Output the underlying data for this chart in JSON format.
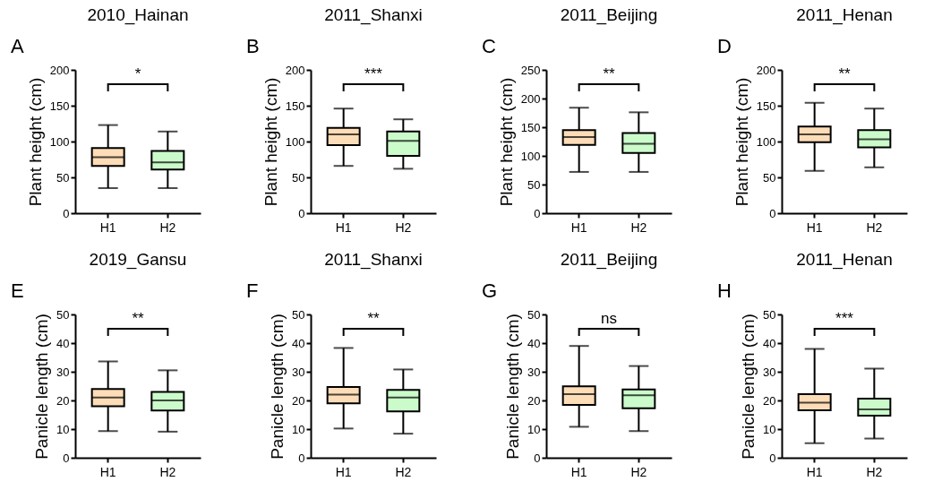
{
  "chart_data": [
    {
      "type": "box",
      "title": "2010_Hainan",
      "ylabel": "Plant height (cm)",
      "categories": [
        "H1",
        "H2"
      ],
      "colors": [
        "#fddcb8",
        "#cbfbcb"
      ],
      "ylim": [
        0,
        200
      ],
      "yticks": [
        0,
        50,
        100,
        150,
        200
      ],
      "annotations": [
        "A",
        "*"
      ],
      "boxes": [
        {
          "low": 35,
          "q1": 66,
          "median": 78,
          "q3": 91,
          "high": 123
        },
        {
          "low": 35,
          "q1": 61,
          "median": 71,
          "q3": 87,
          "high": 114
        }
      ]
    },
    {
      "type": "box",
      "title": "2011_Shanxi",
      "ylabel": "Plant height (cm)",
      "categories": [
        "H1",
        "H2"
      ],
      "colors": [
        "#fddcb8",
        "#cbfbcb"
      ],
      "ylim": [
        0,
        200
      ],
      "yticks": [
        0,
        50,
        100,
        150,
        200
      ],
      "annotations": [
        "B",
        "***"
      ],
      "boxes": [
        {
          "low": 66,
          "q1": 95,
          "median": 110,
          "q3": 119,
          "high": 146
        },
        {
          "low": 62,
          "q1": 80,
          "median": 101,
          "q3": 114,
          "high": 131
        }
      ]
    },
    {
      "type": "box",
      "title": "2011_Beijing",
      "ylabel": "Plant height (cm)",
      "categories": [
        "H1",
        "H2"
      ],
      "colors": [
        "#fddcb8",
        "#cbfbcb"
      ],
      "ylim": [
        0,
        250
      ],
      "yticks": [
        0,
        50,
        100,
        150,
        200,
        250
      ],
      "annotations": [
        "C",
        "**"
      ],
      "boxes": [
        {
          "low": 72,
          "q1": 119,
          "median": 133,
          "q3": 145,
          "high": 184
        },
        {
          "low": 72,
          "q1": 105,
          "median": 121,
          "q3": 140,
          "high": 176
        }
      ]
    },
    {
      "type": "box",
      "title": "2011_Henan",
      "ylabel": "Plant height (cm)",
      "categories": [
        "H1",
        "H2"
      ],
      "colors": [
        "#fddcb8",
        "#cbfbcb"
      ],
      "ylim": [
        0,
        200
      ],
      "yticks": [
        0,
        50,
        100,
        150,
        200
      ],
      "annotations": [
        "D",
        "**"
      ],
      "boxes": [
        {
          "low": 59,
          "q1": 99,
          "median": 110,
          "q3": 121,
          "high": 154
        },
        {
          "low": 64,
          "q1": 92,
          "median": 103,
          "q3": 116,
          "high": 146
        }
      ]
    },
    {
      "type": "box",
      "title": "2019_Gansu",
      "ylabel": "Panicle length (cm)",
      "categories": [
        "H1",
        "H2"
      ],
      "colors": [
        "#fddcb8",
        "#cbfbcb"
      ],
      "ylim": [
        0,
        50
      ],
      "yticks": [
        0,
        10,
        20,
        30,
        40,
        50
      ],
      "annotations": [
        "E",
        "**"
      ],
      "boxes": [
        {
          "low": 9.3,
          "q1": 18,
          "median": 21,
          "q3": 24,
          "high": 33.6
        },
        {
          "low": 9.1,
          "q1": 16.5,
          "median": 20,
          "q3": 23,
          "high": 30.5
        }
      ]
    },
    {
      "type": "box",
      "title": "2011_Shanxi",
      "ylabel": "Panicle length (cm)",
      "categories": [
        "H1",
        "H2"
      ],
      "colors": [
        "#fddcb8",
        "#cbfbcb"
      ],
      "ylim": [
        0,
        50
      ],
      "yticks": [
        0,
        10,
        20,
        30,
        40,
        50
      ],
      "annotations": [
        "F",
        "**"
      ],
      "boxes": [
        {
          "low": 10.2,
          "q1": 19,
          "median": 22,
          "q3": 24.7,
          "high": 38.3
        },
        {
          "low": 8.4,
          "q1": 16.2,
          "median": 21,
          "q3": 23.7,
          "high": 30.8
        }
      ]
    },
    {
      "type": "box",
      "title": "2011_Beijing",
      "ylabel": "Panicle length (cm)",
      "categories": [
        "H1",
        "H2"
      ],
      "colors": [
        "#fddcb8",
        "#cbfbcb"
      ],
      "ylim": [
        0,
        50
      ],
      "yticks": [
        0,
        10,
        20,
        30,
        40,
        50
      ],
      "annotations": [
        "G",
        "ns"
      ],
      "boxes": [
        {
          "low": 10.8,
          "q1": 18.4,
          "median": 22.2,
          "q3": 24.9,
          "high": 39
        },
        {
          "low": 9.3,
          "q1": 17.3,
          "median": 21.8,
          "q3": 23.8,
          "high": 32
        }
      ]
    },
    {
      "type": "box",
      "title": "2011_Henan",
      "ylabel": "Panicle length (cm)",
      "categories": [
        "H1",
        "H2"
      ],
      "colors": [
        "#fddcb8",
        "#cbfbcb"
      ],
      "ylim": [
        0,
        50
      ],
      "yticks": [
        0,
        10,
        20,
        30,
        40,
        50
      ],
      "annotations": [
        "H",
        "***"
      ],
      "boxes": [
        {
          "low": 5.1,
          "q1": 16.6,
          "median": 19.2,
          "q3": 22.2,
          "high": 38
        },
        {
          "low": 6.7,
          "q1": 14.7,
          "median": 16.9,
          "q3": 20.6,
          "high": 31.1
        }
      ]
    }
  ]
}
